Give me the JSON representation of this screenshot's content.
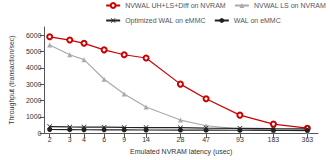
{
  "chart_data": {
    "type": "line",
    "xlabel": "Emulated NVRAM latency (usec)",
    "ylabel": "Throughput (transaction/sec)",
    "x": [
      2,
      3,
      4,
      6,
      9,
      14,
      28,
      47,
      93,
      183,
      363
    ],
    "series": [
      {
        "name": "NVWAL UH+LS+Diff on NVRAM",
        "color": "#cc0000",
        "marker": "open circle",
        "values": [
          5900,
          5700,
          5500,
          5100,
          4800,
          4600,
          3000,
          2100,
          1100,
          550,
          300
        ]
      },
      {
        "name": "NVWAL LS on NVRAM",
        "color": "#aaaaaa",
        "marker": "triangle",
        "values": [
          5400,
          4800,
          4500,
          3300,
          2400,
          1600,
          800,
          450,
          250,
          180,
          130
        ]
      },
      {
        "name": "Optimized WAL on eMMC",
        "color": "#222222",
        "marker": "x",
        "values": [
          400,
          380,
          370,
          360,
          350,
          340,
          330,
          310,
          290,
          270,
          260
        ]
      },
      {
        "name": "WAL on eMMC",
        "color": "#222222",
        "marker": "circle",
        "values": [
          220,
          210,
          205,
          200,
          195,
          190,
          185,
          180,
          175,
          170,
          165
        ]
      }
    ],
    "log": "x",
    "xlim": [
      1.8,
      450
    ],
    "xticks": [
      2,
      3,
      4,
      6,
      9,
      14,
      28,
      47,
      93,
      183,
      363
    ],
    "ylim": [
      0,
      6500
    ],
    "yticks": [
      0,
      1000,
      2000,
      3000,
      4000,
      5000,
      6000
    ],
    "grid": false,
    "legend": "upper right"
  }
}
